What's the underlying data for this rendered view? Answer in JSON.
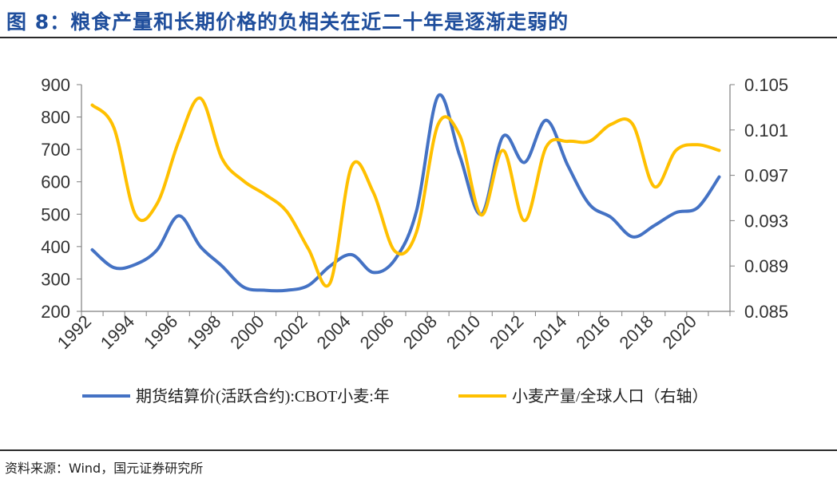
{
  "title": "图 8：粮食产量和长期价格的负相关在近二十年是逐渐走弱的",
  "source": "资料来源：Wind，国元证券研究所",
  "colors": {
    "title": "#1f4e9c",
    "series_price": "#4472c4",
    "series_output": "#ffc000"
  },
  "chart_data": {
    "type": "line",
    "title": "粮食产量和长期价格的负相关在近二十年是逐渐走弱的",
    "x": [
      1992,
      1993,
      1994,
      1995,
      1996,
      1997,
      1998,
      1999,
      2000,
      2001,
      2002,
      2003,
      2004,
      2005,
      2006,
      2007,
      2008,
      2009,
      2010,
      2011,
      2012,
      2013,
      2014,
      2015,
      2016,
      2017,
      2018,
      2019,
      2020,
      2021
    ],
    "x_tick_labels": [
      "1992",
      "1994",
      "1996",
      "1998",
      "2000",
      "2002",
      "2004",
      "2006",
      "2008",
      "2010",
      "2012",
      "2014",
      "2016",
      "2018",
      "2020"
    ],
    "left_axis": {
      "ylim": [
        200,
        900
      ],
      "ticks": [
        "200",
        "300",
        "400",
        "500",
        "600",
        "700",
        "800",
        "900"
      ]
    },
    "right_axis": {
      "ylim": [
        0.085,
        0.105
      ],
      "ticks": [
        "0.085",
        "0.089",
        "0.093",
        "0.097",
        "0.101",
        "0.105"
      ]
    },
    "series": [
      {
        "name": "期货结算价(活跃合约):CBOT小麦:年",
        "axis": "left",
        "values": [
          390,
          335,
          345,
          390,
          495,
          400,
          340,
          275,
          265,
          265,
          280,
          340,
          375,
          320,
          360,
          510,
          865,
          680,
          500,
          740,
          660,
          790,
          650,
          530,
          490,
          430,
          465,
          505,
          520,
          615
        ]
      },
      {
        "name": "小麦产量/全球人口（右轴）",
        "axis": "right",
        "values": [
          0.1032,
          0.1012,
          0.0935,
          0.0945,
          0.1,
          0.1038,
          0.0985,
          0.0965,
          0.0953,
          0.0938,
          0.0905,
          0.0875,
          0.0978,
          0.0955,
          0.0903,
          0.092,
          0.1015,
          0.1005,
          0.0935,
          0.0992,
          0.093,
          0.0995,
          0.1,
          0.1,
          0.1015,
          0.1015,
          0.096,
          0.0992,
          0.0997,
          0.0992
        ]
      }
    ],
    "grid": false,
    "legend": "bottom"
  }
}
